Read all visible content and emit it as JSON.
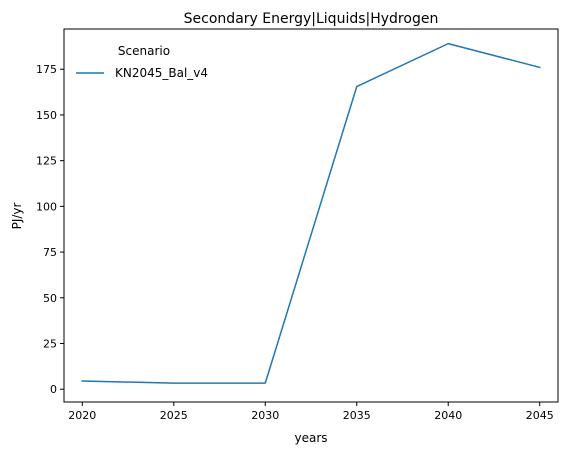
{
  "chart_data": {
    "type": "line",
    "title": "Secondary Energy|Liquids|Hydrogen",
    "xlabel": "years",
    "ylabel": "PJ/yr",
    "x": [
      2020,
      2025,
      2030,
      2035,
      2040,
      2045
    ],
    "xlim": [
      2019,
      2046
    ],
    "ylim": [
      -7,
      197
    ],
    "xticks": [
      "2020",
      "2025",
      "2030",
      "2035",
      "2040",
      "2045"
    ],
    "yticks": [
      "0",
      "25",
      "50",
      "75",
      "100",
      "125",
      "150",
      "175"
    ],
    "grid": false,
    "legend": {
      "title": "Scenario",
      "placement": "top-left"
    },
    "series": [
      {
        "name": "KN2045_Bal_v4",
        "color": "#1f77b4",
        "values": [
          4.5,
          3.3,
          3.3,
          165.5,
          189.0,
          176.0
        ]
      }
    ]
  }
}
